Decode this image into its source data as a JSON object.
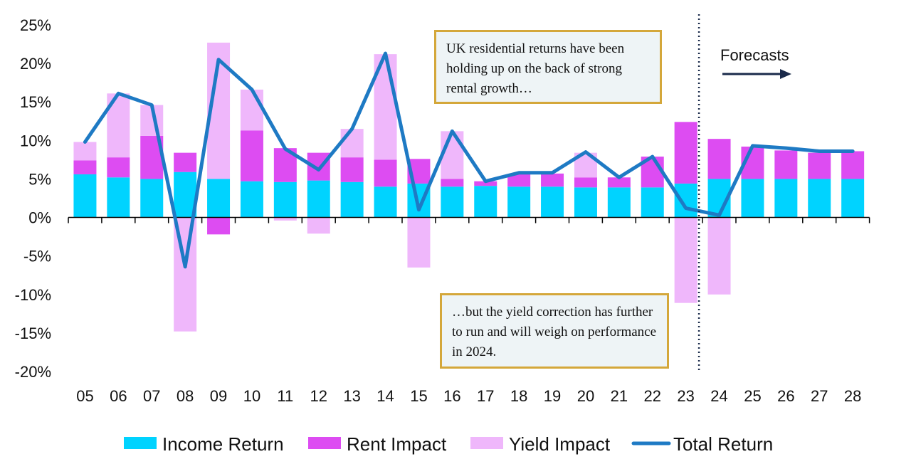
{
  "chart_data": {
    "type": "bar",
    "stacked": true,
    "categories": [
      "05",
      "06",
      "07",
      "08",
      "09",
      "10",
      "11",
      "12",
      "13",
      "14",
      "15",
      "16",
      "17",
      "18",
      "19",
      "20",
      "21",
      "22",
      "23",
      "24",
      "25",
      "26",
      "27",
      "28"
    ],
    "series": [
      {
        "name": "Income Return",
        "kind": "bar",
        "color": "#00d3ff",
        "values": [
          5.6,
          5.2,
          5.0,
          5.9,
          5.0,
          4.7,
          4.6,
          4.8,
          4.6,
          4.0,
          4.4,
          4.0,
          4.1,
          4.0,
          4.0,
          3.9,
          3.9,
          3.9,
          4.4,
          5.0,
          5.0,
          5.0,
          5.0,
          5.0
        ]
      },
      {
        "name": "Rent Impact",
        "kind": "bar",
        "color": "#dd4cf2",
        "values": [
          1.8,
          2.6,
          5.6,
          2.5,
          -2.2,
          6.6,
          4.4,
          3.6,
          3.2,
          3.5,
          3.2,
          1.0,
          0.6,
          1.6,
          1.7,
          1.3,
          1.3,
          4.0,
          8.0,
          5.2,
          4.2,
          3.7,
          3.4,
          3.6
        ]
      },
      {
        "name": "Yield Impact",
        "kind": "bar",
        "color": "#efb7fb",
        "values": [
          2.4,
          8.3,
          4.0,
          -14.8,
          17.7,
          5.3,
          -0.4,
          -2.1,
          3.7,
          13.7,
          -6.5,
          6.2,
          0.0,
          0.0,
          0.0,
          3.2,
          0.0,
          0.0,
          -11.1,
          -10.0,
          0.0,
          0.0,
          0.0,
          0.0
        ]
      },
      {
        "name": "Total Return",
        "kind": "line",
        "color": "#1e7ac4",
        "values": [
          9.8,
          16.1,
          14.6,
          -6.4,
          20.5,
          16.6,
          8.9,
          6.2,
          11.5,
          21.3,
          1.0,
          11.2,
          4.7,
          5.8,
          5.8,
          8.5,
          5.2,
          7.9,
          1.2,
          0.3,
          9.3,
          9.0,
          8.6,
          8.6
        ]
      }
    ],
    "ylim": [
      -20,
      25
    ],
    "yticks": [
      25,
      20,
      15,
      10,
      5,
      0,
      -5,
      -10,
      -15,
      -20
    ],
    "ytick_labels": [
      "25%",
      "20%",
      "15%",
      "10%",
      "5%",
      "0%",
      "-5%",
      "-10%",
      "-15%",
      "-20%"
    ],
    "grid": false,
    "legend_position": "bottom",
    "forecast_divider_after": "23",
    "forecast_label": "Forecasts",
    "annotations": [
      "UK residential returns have been holding up on the back of strong rental growth…",
      "…but the yield correction has further to run and will weigh on performance in 2024."
    ]
  }
}
